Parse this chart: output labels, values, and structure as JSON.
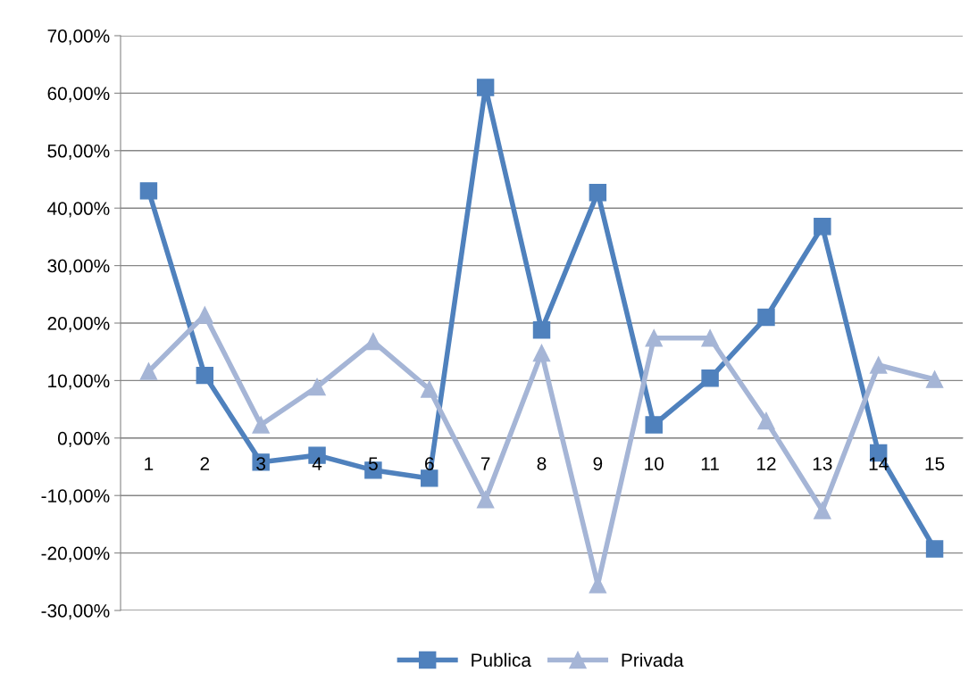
{
  "chart_data": {
    "type": "line",
    "categories": [
      "1",
      "2",
      "3",
      "4",
      "5",
      "6",
      "7",
      "8",
      "9",
      "10",
      "11",
      "12",
      "13",
      "14",
      "15"
    ],
    "series": [
      {
        "name": "Publica",
        "color": "#4f81bd",
        "marker": "square",
        "values": [
          43.0,
          10.9,
          -4.2,
          -3.0,
          -5.6,
          -7.0,
          61.0,
          18.8,
          42.7,
          2.3,
          10.4,
          21.0,
          36.8,
          -2.6,
          -19.3
        ]
      },
      {
        "name": "Privada",
        "color": "#a5b5d6",
        "marker": "triangle",
        "values": [
          11.6,
          21.4,
          2.3,
          8.9,
          16.8,
          8.5,
          -10.7,
          14.8,
          -25.5,
          17.4,
          17.4,
          3.0,
          -12.6,
          12.7,
          10.2
        ]
      }
    ],
    "ylim": [
      -30,
      70
    ],
    "yticks": [
      {
        "value": -30,
        "label": "-30,00%"
      },
      {
        "value": -20,
        "label": "-20,00%"
      },
      {
        "value": -10,
        "label": "-10,00%"
      },
      {
        "value": 0,
        "label": "0,00%"
      },
      {
        "value": 10,
        "label": "10,00%"
      },
      {
        "value": 20,
        "label": "20,00%"
      },
      {
        "value": 30,
        "label": "30,00%"
      },
      {
        "value": 40,
        "label": "40,00%"
      },
      {
        "value": 50,
        "label": "50,00%"
      },
      {
        "value": 60,
        "label": "60,00%"
      },
      {
        "value": 70,
        "label": "70,00%"
      }
    ],
    "grid": "y",
    "legend": "bottom"
  }
}
